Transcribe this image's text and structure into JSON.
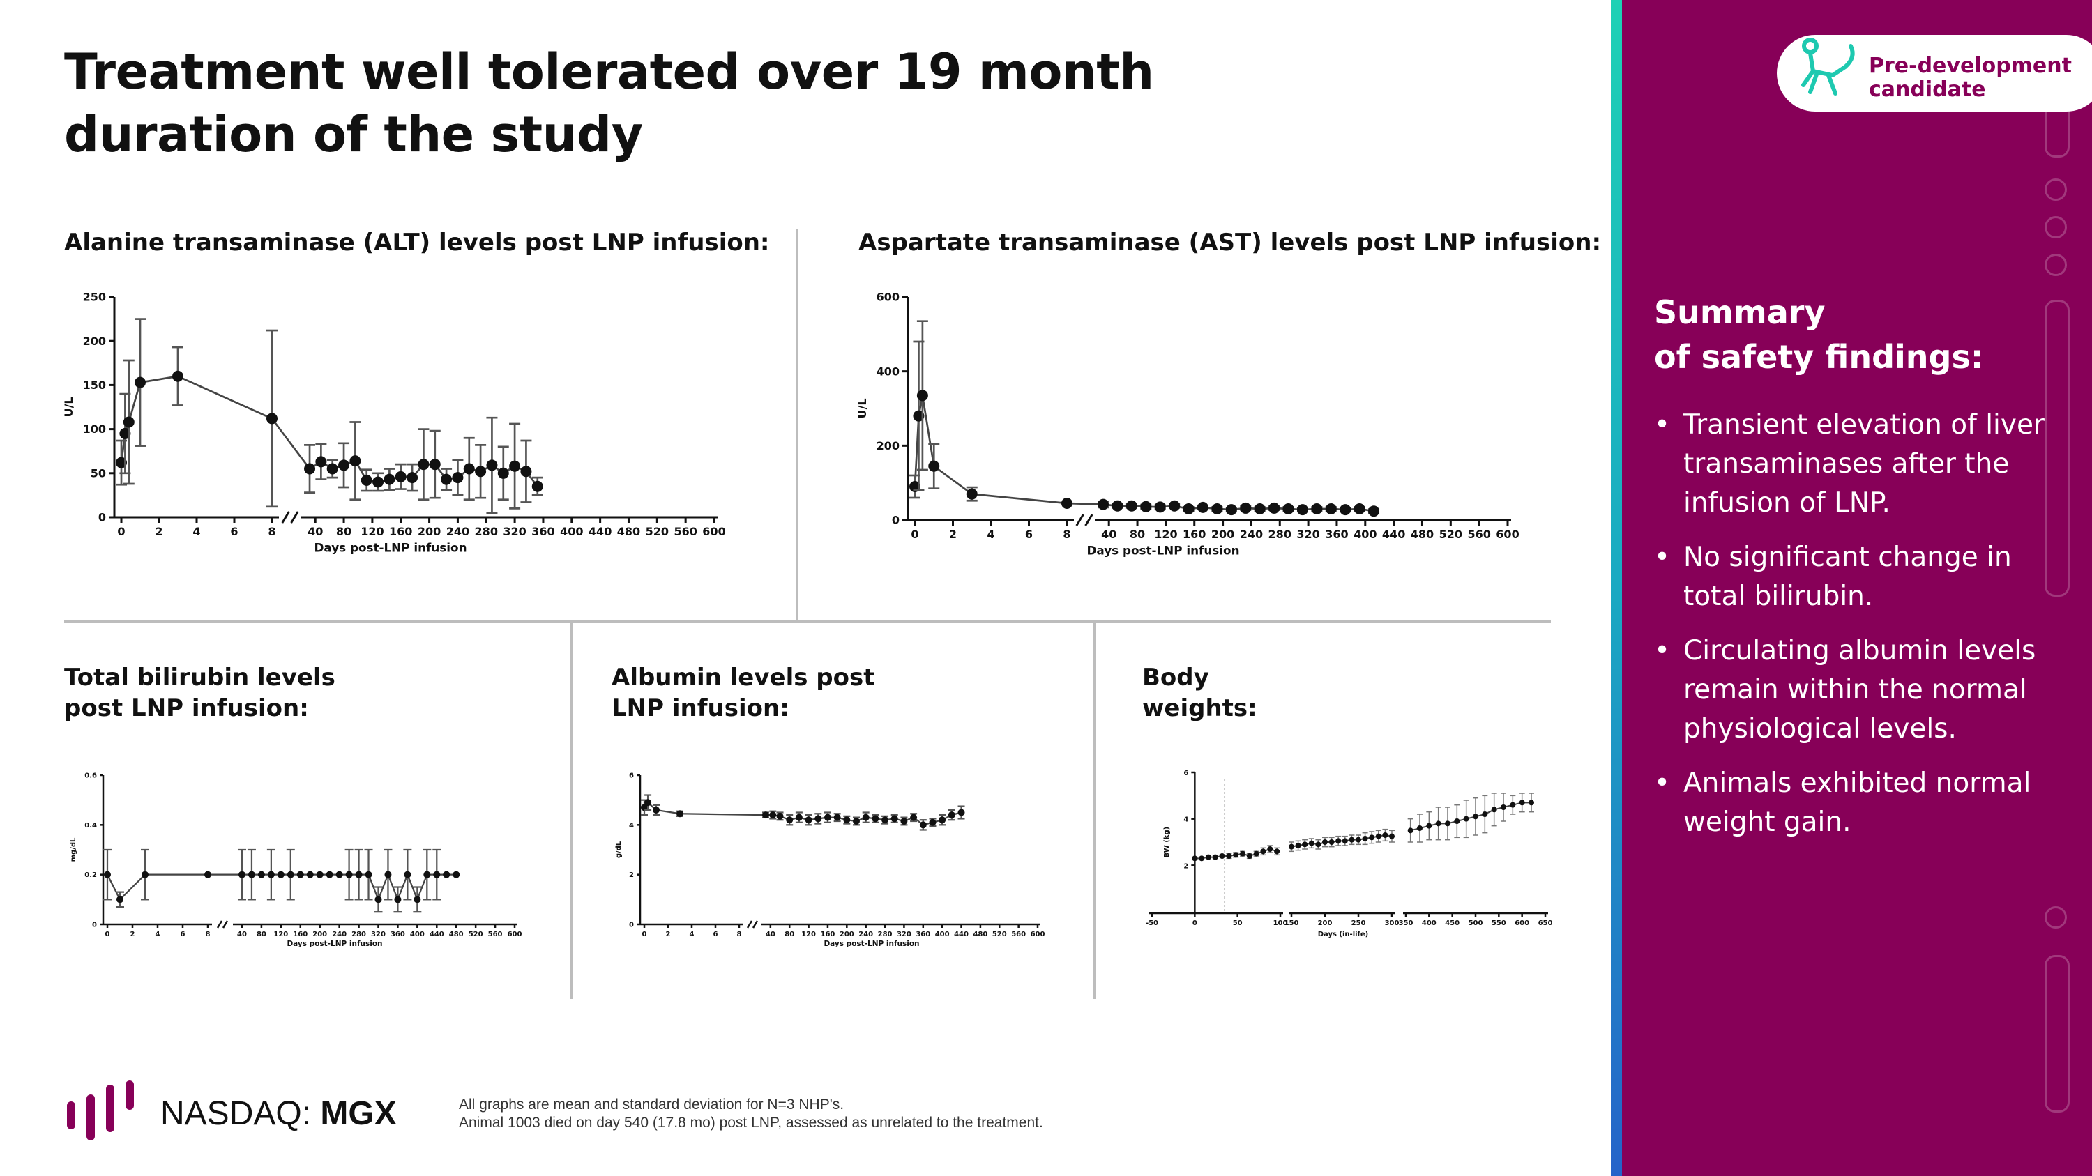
{
  "title": "Treatment well tolerated over 19 month duration of the study",
  "panels": {
    "alt_title": "Alanine transaminase (ALT) levels post LNP infusion:",
    "ast_title": "Aspartate transaminase (AST) levels post LNP infusion:",
    "bili_title": "Total bilirubin levels post LNP infusion:",
    "alb_title": "Albumin levels post LNP infusion:",
    "bw_title": "Body weights:"
  },
  "footer": {
    "ticker_prefix": "NASDAQ: ",
    "ticker_symbol": "MGX",
    "note1": "All graphs are mean and standard deviation for N=3 NHP's.",
    "note2": "Animal 1003 died on day 540 (17.8 mo) post LNP, assessed as unrelated to the treatment."
  },
  "badge": {
    "line1": "Pre-development",
    "line2": "candidate",
    "icon": "monkey-icon"
  },
  "summary": {
    "title_line1": "Summary",
    "title_line2": "of safety findings:",
    "bullets": [
      "Transient elevation of liver transaminases after the infusion of LNP.",
      "No significant change in total bilirubin.",
      "Circulating albumin levels remain within the normal physiological levels.",
      "Animals exhibited normal weight gain."
    ]
  },
  "colors": {
    "brand": "#870058",
    "accent_top": "#1ed1b5",
    "accent_bottom": "#2563c9",
    "marker": "#111111"
  },
  "chart_data": [
    {
      "id": "alt",
      "type": "line",
      "ylabel": "U/L",
      "xlabel": "Days post-LNP infusion",
      "ylim": [
        0,
        250
      ],
      "yticks": [
        0,
        50,
        100,
        150,
        200,
        250
      ],
      "seg1_xlim": [
        0,
        8
      ],
      "seg1_xticks": [
        0,
        2,
        4,
        6,
        8
      ],
      "seg2_xlim": [
        30,
        600
      ],
      "seg2_xticks": [
        40,
        80,
        120,
        160,
        200,
        240,
        280,
        320,
        360,
        400,
        440,
        480,
        520,
        560,
        600
      ],
      "points": [
        [
          0,
          62,
          25
        ],
        [
          0.2,
          95,
          45
        ],
        [
          0.4,
          108,
          70
        ],
        [
          1,
          153,
          72
        ],
        [
          3,
          160,
          33
        ],
        [
          8,
          112,
          100
        ],
        [
          32,
          55,
          27
        ],
        [
          48,
          63,
          20
        ],
        [
          64,
          55,
          10
        ],
        [
          80,
          59,
          25
        ],
        [
          96,
          64,
          44
        ],
        [
          112,
          42,
          12
        ],
        [
          128,
          40,
          10
        ],
        [
          144,
          43,
          12
        ],
        [
          160,
          46,
          14
        ],
        [
          176,
          45,
          15
        ],
        [
          192,
          60,
          40
        ],
        [
          208,
          60,
          38
        ],
        [
          224,
          43,
          12
        ],
        [
          240,
          45,
          20
        ],
        [
          256,
          55,
          35
        ],
        [
          272,
          52,
          30
        ],
        [
          288,
          59,
          54
        ],
        [
          304,
          50,
          30
        ],
        [
          320,
          58,
          48
        ],
        [
          336,
          52,
          35
        ],
        [
          352,
          35,
          10
        ]
      ]
    },
    {
      "id": "ast",
      "type": "line",
      "ylabel": "U/L",
      "xlabel": "Days post-LNP  infusion",
      "ylim": [
        0,
        600
      ],
      "yticks": [
        0,
        200,
        400,
        600
      ],
      "seg1_xlim": [
        0,
        8
      ],
      "seg1_xticks": [
        0,
        2,
        4,
        6,
        8
      ],
      "seg2_xlim": [
        30,
        600
      ],
      "seg2_xticks": [
        40,
        80,
        120,
        160,
        200,
        240,
        280,
        320,
        360,
        400,
        440,
        480,
        520,
        560,
        600
      ],
      "points": [
        [
          0,
          90,
          30
        ],
        [
          0.2,
          280,
          200
        ],
        [
          0.4,
          335,
          200
        ],
        [
          1,
          145,
          60
        ],
        [
          3,
          70,
          18
        ],
        [
          8,
          45,
          0
        ],
        [
          32,
          42,
          8
        ],
        [
          52,
          38,
          5
        ],
        [
          72,
          38,
          5
        ],
        [
          92,
          36,
          5
        ],
        [
          112,
          35,
          5
        ],
        [
          132,
          38,
          5
        ],
        [
          152,
          30,
          5
        ],
        [
          172,
          34,
          5
        ],
        [
          192,
          30,
          5
        ],
        [
          212,
          28,
          5
        ],
        [
          232,
          32,
          5
        ],
        [
          252,
          30,
          5
        ],
        [
          272,
          32,
          5
        ],
        [
          292,
          30,
          5
        ],
        [
          312,
          28,
          5
        ],
        [
          332,
          30,
          5
        ],
        [
          352,
          30,
          5
        ],
        [
          372,
          28,
          5
        ],
        [
          392,
          30,
          5
        ],
        [
          412,
          24,
          5
        ]
      ]
    },
    {
      "id": "bili",
      "type": "line",
      "ylabel": "mg/dL",
      "xlabel": "Days post-LNP infusion",
      "ylim": [
        0,
        0.6
      ],
      "yticks": [
        0.0,
        0.2,
        0.4,
        0.6
      ],
      "seg1_xlim": [
        0,
        8
      ],
      "seg1_xticks": [
        0,
        2,
        4,
        6,
        8
      ],
      "seg2_xlim": [
        30,
        600
      ],
      "seg2_xticks": [
        40,
        80,
        120,
        160,
        200,
        240,
        280,
        320,
        360,
        400,
        440,
        480,
        520,
        560,
        600
      ],
      "points": [
        [
          0,
          0.2,
          0.1
        ],
        [
          1,
          0.1,
          0.03
        ],
        [
          3,
          0.2,
          0.1
        ],
        [
          8,
          0.2,
          0
        ],
        [
          40,
          0.2,
          0.1
        ],
        [
          60,
          0.2,
          0.1
        ],
        [
          80,
          0.2,
          0
        ],
        [
          100,
          0.2,
          0.1
        ],
        [
          120,
          0.2,
          0
        ],
        [
          140,
          0.2,
          0.1
        ],
        [
          160,
          0.2,
          0
        ],
        [
          180,
          0.2,
          0
        ],
        [
          200,
          0.2,
          0
        ],
        [
          220,
          0.2,
          0
        ],
        [
          240,
          0.2,
          0
        ],
        [
          260,
          0.2,
          0.1
        ],
        [
          280,
          0.2,
          0.1
        ],
        [
          300,
          0.2,
          0.1
        ],
        [
          320,
          0.1,
          0.05
        ],
        [
          340,
          0.2,
          0.1
        ],
        [
          360,
          0.1,
          0.05
        ],
        [
          380,
          0.2,
          0.1
        ],
        [
          400,
          0.1,
          0.05
        ],
        [
          420,
          0.2,
          0.1
        ],
        [
          440,
          0.2,
          0.1
        ],
        [
          460,
          0.2,
          0
        ],
        [
          480,
          0.2,
          0
        ]
      ]
    },
    {
      "id": "alb",
      "type": "line",
      "ylabel": "g/dL",
      "xlabel": "Days post-LNP infusion",
      "ylim": [
        0,
        6
      ],
      "yticks": [
        0,
        2,
        4,
        6
      ],
      "seg1_xlim": [
        0,
        8
      ],
      "seg1_xticks": [
        0,
        2,
        4,
        6,
        8
      ],
      "seg2_xlim": [
        30,
        600
      ],
      "seg2_xticks": [
        40,
        80,
        120,
        160,
        200,
        240,
        280,
        320,
        360,
        400,
        440,
        480,
        520,
        560,
        600
      ],
      "points": [
        [
          0,
          4.7,
          0.3
        ],
        [
          0.3,
          4.9,
          0.3
        ],
        [
          1,
          4.6,
          0.2
        ],
        [
          3,
          4.45,
          0.1
        ],
        [
          30,
          4.4,
          0.1
        ],
        [
          45,
          4.4,
          0.15
        ],
        [
          60,
          4.35,
          0.15
        ],
        [
          80,
          4.2,
          0.2
        ],
        [
          100,
          4.3,
          0.2
        ],
        [
          120,
          4.2,
          0.2
        ],
        [
          140,
          4.25,
          0.2
        ],
        [
          160,
          4.3,
          0.2
        ],
        [
          180,
          4.3,
          0.15
        ],
        [
          200,
          4.2,
          0.15
        ],
        [
          220,
          4.15,
          0.15
        ],
        [
          240,
          4.3,
          0.2
        ],
        [
          260,
          4.25,
          0.15
        ],
        [
          280,
          4.2,
          0.15
        ],
        [
          300,
          4.25,
          0.15
        ],
        [
          320,
          4.15,
          0.15
        ],
        [
          340,
          4.3,
          0.15
        ],
        [
          360,
          4.0,
          0.2
        ],
        [
          380,
          4.1,
          0.15
        ],
        [
          400,
          4.2,
          0.2
        ],
        [
          420,
          4.4,
          0.2
        ],
        [
          440,
          4.5,
          0.25
        ]
      ]
    },
    {
      "id": "bw",
      "type": "scatter",
      "ylabel": "BW (kg)",
      "xlabel": "Days (in-life)",
      "ylim": [
        0,
        6
      ],
      "yticks": [
        2,
        4,
        6
      ],
      "segments": [
        {
          "xlim": [
            -50,
            100
          ],
          "xticks": [
            -50,
            0,
            50,
            100
          ],
          "points": [
            [
              0,
              2.3,
              0.05
            ],
            [
              8,
              2.3,
              0.05
            ],
            [
              16,
              2.35,
              0.05
            ],
            [
              24,
              2.35,
              0.05
            ],
            [
              32,
              2.4,
              0.05
            ],
            [
              40,
              2.4,
              0.1
            ],
            [
              48,
              2.45,
              0.1
            ],
            [
              56,
              2.5,
              0.1
            ],
            [
              64,
              2.4,
              0.1
            ],
            [
              72,
              2.5,
              0.1
            ],
            [
              80,
              2.6,
              0.15
            ],
            [
              88,
              2.7,
              0.15
            ],
            [
              96,
              2.6,
              0.15
            ]
          ]
        },
        {
          "xlim": [
            150,
            300
          ],
          "xticks": [
            150,
            200,
            250,
            300
          ],
          "points": [
            [
              150,
              2.8,
              0.2
            ],
            [
              160,
              2.85,
              0.2
            ],
            [
              170,
              2.9,
              0.2
            ],
            [
              180,
              2.95,
              0.2
            ],
            [
              190,
              2.9,
              0.2
            ],
            [
              200,
              3.0,
              0.2
            ],
            [
              210,
              3.0,
              0.2
            ],
            [
              220,
              3.05,
              0.2
            ],
            [
              230,
              3.05,
              0.2
            ],
            [
              240,
              3.1,
              0.2
            ],
            [
              250,
              3.1,
              0.2
            ],
            [
              260,
              3.15,
              0.25
            ],
            [
              270,
              3.2,
              0.25
            ],
            [
              280,
              3.25,
              0.25
            ],
            [
              290,
              3.3,
              0.25
            ],
            [
              300,
              3.25,
              0.25
            ]
          ]
        },
        {
          "xlim": [
            350,
            650
          ],
          "xticks": [
            350,
            400,
            450,
            500,
            550,
            600,
            650
          ],
          "points": [
            [
              360,
              3.5,
              0.5
            ],
            [
              380,
              3.6,
              0.6
            ],
            [
              400,
              3.7,
              0.6
            ],
            [
              420,
              3.8,
              0.7
            ],
            [
              440,
              3.8,
              0.7
            ],
            [
              460,
              3.9,
              0.7
            ],
            [
              480,
              4.0,
              0.8
            ],
            [
              500,
              4.1,
              0.8
            ],
            [
              520,
              4.2,
              0.8
            ],
            [
              540,
              4.4,
              0.7
            ],
            [
              560,
              4.5,
              0.6
            ],
            [
              580,
              4.6,
              0.4
            ],
            [
              600,
              4.7,
              0.4
            ],
            [
              620,
              4.7,
              0.4
            ]
          ]
        }
      ],
      "marker_day": 35
    }
  ]
}
